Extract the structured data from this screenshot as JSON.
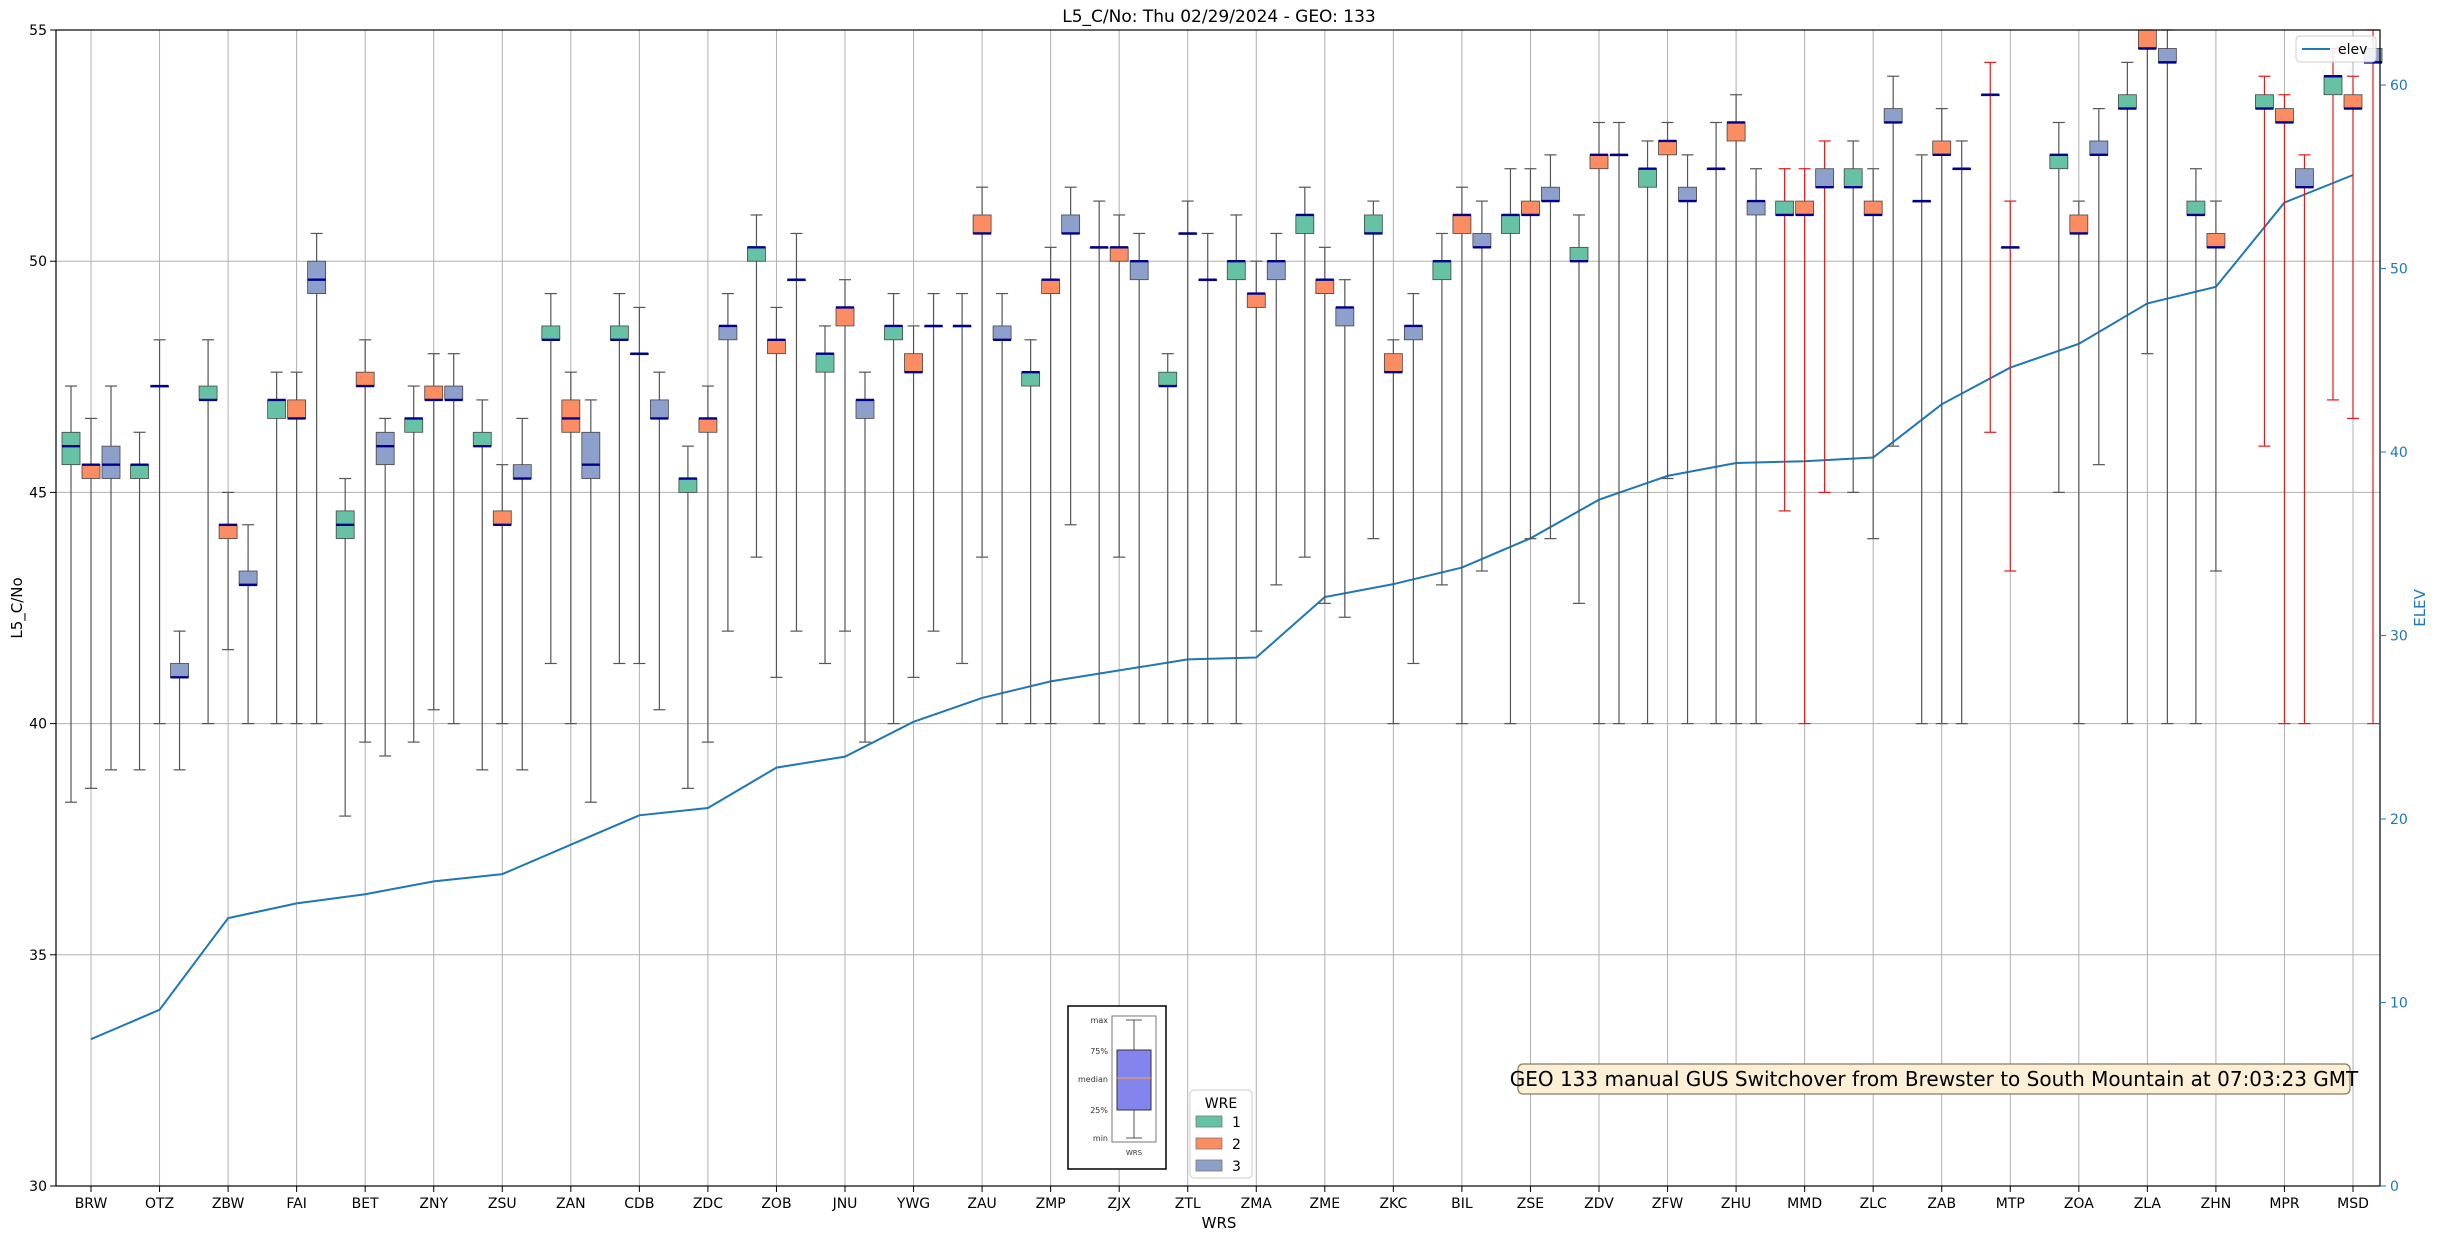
{
  "chart_data": {
    "type": "box",
    "title": "L5_C/No: Thu 02/29/2024 - GEO: 133",
    "xlabel": "WRS",
    "ylabel": "L5_C/No",
    "ylabel_right": "ELEV",
    "ylim": [
      30,
      55
    ],
    "ylim_right": [
      0,
      63
    ],
    "yticks": [
      "30",
      "35",
      "40",
      "45",
      "50",
      "55"
    ],
    "yticks_right": [
      "0",
      "10",
      "20",
      "30",
      "40",
      "50",
      "60"
    ],
    "grid": true,
    "categories": [
      "BRW",
      "OTZ",
      "ZBW",
      "FAI",
      "BET",
      "ZNY",
      "ZSU",
      "ZAN",
      "CDB",
      "ZDC",
      "ZOB",
      "JNU",
      "YWG",
      "ZAU",
      "ZMP",
      "ZJX",
      "ZTL",
      "ZMA",
      "ZME",
      "ZKC",
      "BIL",
      "ZSE",
      "ZDV",
      "ZFW",
      "ZHU",
      "MMD",
      "ZLC",
      "ZAB",
      "MTP",
      "ZOA",
      "ZLA",
      "ZHN",
      "MPR",
      "MSD"
    ],
    "colors": {
      "1": "#66c2a5",
      "2": "#fc8d62",
      "3": "#8da0cb",
      "elev": "#1f77b4",
      "median": "#00008b",
      "whisker": "#555555",
      "whisker_alt": "#e31a1c"
    },
    "boxes": [
      {
        "cat": "BRW",
        "wre": 1,
        "min": 38.3,
        "q1": 45.6,
        "median": 46.0,
        "q3": 46.3,
        "max": 47.3
      },
      {
        "cat": "BRW",
        "wre": 2,
        "min": 38.6,
        "q1": 45.3,
        "median": 45.6,
        "q3": 45.6,
        "max": 46.6
      },
      {
        "cat": "BRW",
        "wre": 3,
        "min": 39.0,
        "q1": 45.3,
        "median": 45.6,
        "q3": 46.0,
        "max": 47.3
      },
      {
        "cat": "OTZ",
        "wre": 1,
        "min": 39.0,
        "q1": 45.3,
        "median": 45.6,
        "q3": 45.6,
        "max": 46.3
      },
      {
        "cat": "OTZ",
        "wre": 2,
        "min": 40.0,
        "q1": 47.3,
        "median": 47.3,
        "q3": 47.3,
        "max": 48.3
      },
      {
        "cat": "OTZ",
        "wre": 3,
        "min": 39.0,
        "q1": 41.0,
        "median": 41.0,
        "q3": 41.3,
        "max": 42.0
      },
      {
        "cat": "ZBW",
        "wre": 1,
        "min": 40.0,
        "q1": 47.0,
        "median": 47.0,
        "q3": 47.3,
        "max": 48.3
      },
      {
        "cat": "ZBW",
        "wre": 2,
        "min": 41.6,
        "q1": 44.0,
        "median": 44.3,
        "q3": 44.3,
        "max": 45.0
      },
      {
        "cat": "ZBW",
        "wre": 3,
        "min": 40.0,
        "q1": 43.0,
        "median": 43.0,
        "q3": 43.3,
        "max": 44.3
      },
      {
        "cat": "FAI",
        "wre": 1,
        "min": 40.0,
        "q1": 46.6,
        "median": 47.0,
        "q3": 47.0,
        "max": 47.6
      },
      {
        "cat": "FAI",
        "wre": 2,
        "min": 40.0,
        "q1": 46.6,
        "median": 46.6,
        "q3": 47.0,
        "max": 47.6
      },
      {
        "cat": "FAI",
        "wre": 3,
        "min": 40.0,
        "q1": 49.3,
        "median": 49.6,
        "q3": 50.0,
        "max": 50.6
      },
      {
        "cat": "BET",
        "wre": 1,
        "min": 38.0,
        "q1": 44.0,
        "median": 44.3,
        "q3": 44.6,
        "max": 45.3
      },
      {
        "cat": "BET",
        "wre": 2,
        "min": 39.6,
        "q1": 47.3,
        "median": 47.3,
        "q3": 47.6,
        "max": 48.3
      },
      {
        "cat": "BET",
        "wre": 3,
        "min": 39.3,
        "q1": 45.6,
        "median": 46.0,
        "q3": 46.3,
        "max": 46.6
      },
      {
        "cat": "ZNY",
        "wre": 1,
        "min": 39.6,
        "q1": 46.3,
        "median": 46.6,
        "q3": 46.6,
        "max": 47.3
      },
      {
        "cat": "ZNY",
        "wre": 2,
        "min": 40.3,
        "q1": 47.0,
        "median": 47.0,
        "q3": 47.3,
        "max": 48.0
      },
      {
        "cat": "ZNY",
        "wre": 3,
        "min": 40.0,
        "q1": 47.0,
        "median": 47.0,
        "q3": 47.3,
        "max": 48.0
      },
      {
        "cat": "ZSU",
        "wre": 1,
        "min": 39.0,
        "q1": 46.0,
        "median": 46.0,
        "q3": 46.3,
        "max": 47.0
      },
      {
        "cat": "ZSU",
        "wre": 2,
        "min": 40.0,
        "q1": 44.3,
        "median": 44.3,
        "q3": 44.6,
        "max": 45.6
      },
      {
        "cat": "ZSU",
        "wre": 3,
        "min": 39.0,
        "q1": 45.3,
        "median": 45.3,
        "q3": 45.6,
        "max": 46.6
      },
      {
        "cat": "ZAN",
        "wre": 1,
        "min": 41.3,
        "q1": 48.3,
        "median": 48.3,
        "q3": 48.6,
        "max": 49.3
      },
      {
        "cat": "ZAN",
        "wre": 2,
        "min": 40.0,
        "q1": 46.3,
        "median": 46.6,
        "q3": 47.0,
        "max": 47.6
      },
      {
        "cat": "ZAN",
        "wre": 3,
        "min": 38.3,
        "q1": 45.3,
        "median": 45.6,
        "q3": 46.3,
        "max": 47.0
      },
      {
        "cat": "CDB",
        "wre": 1,
        "min": 41.3,
        "q1": 48.3,
        "median": 48.3,
        "q3": 48.6,
        "max": 49.3
      },
      {
        "cat": "CDB",
        "wre": 2,
        "min": 41.3,
        "q1": 48.0,
        "median": 48.0,
        "q3": 48.0,
        "max": 49.0
      },
      {
        "cat": "CDB",
        "wre": 3,
        "min": 40.3,
        "q1": 46.6,
        "median": 46.6,
        "q3": 47.0,
        "max": 47.6
      },
      {
        "cat": "ZDC",
        "wre": 1,
        "min": 38.6,
        "q1": 45.0,
        "median": 45.3,
        "q3": 45.3,
        "max": 46.0
      },
      {
        "cat": "ZDC",
        "wre": 2,
        "min": 39.6,
        "q1": 46.3,
        "median": 46.6,
        "q3": 46.6,
        "max": 47.3
      },
      {
        "cat": "ZDC",
        "wre": 3,
        "min": 42.0,
        "q1": 48.3,
        "median": 48.6,
        "q3": 48.6,
        "max": 49.3
      },
      {
        "cat": "ZOB",
        "wre": 1,
        "min": 43.6,
        "q1": 50.0,
        "median": 50.3,
        "q3": 50.3,
        "max": 51.0
      },
      {
        "cat": "ZOB",
        "wre": 2,
        "min": 41.0,
        "q1": 48.0,
        "median": 48.3,
        "q3": 48.3,
        "max": 49.0
      },
      {
        "cat": "ZOB",
        "wre": 3,
        "min": 42.0,
        "q1": 49.6,
        "median": 49.6,
        "q3": 49.6,
        "max": 50.6
      },
      {
        "cat": "JNU",
        "wre": 1,
        "min": 41.3,
        "q1": 47.6,
        "median": 48.0,
        "q3": 48.0,
        "max": 48.6
      },
      {
        "cat": "JNU",
        "wre": 2,
        "min": 42.0,
        "q1": 48.6,
        "median": 49.0,
        "q3": 49.0,
        "max": 49.6
      },
      {
        "cat": "JNU",
        "wre": 3,
        "min": 39.6,
        "q1": 46.6,
        "median": 47.0,
        "q3": 47.0,
        "max": 47.6
      },
      {
        "cat": "YWG",
        "wre": 1,
        "min": 40.0,
        "q1": 48.3,
        "median": 48.6,
        "q3": 48.6,
        "max": 49.3
      },
      {
        "cat": "YWG",
        "wre": 2,
        "min": 41.0,
        "q1": 47.6,
        "median": 47.6,
        "q3": 48.0,
        "max": 48.6
      },
      {
        "cat": "YWG",
        "wre": 3,
        "min": 42.0,
        "q1": 48.6,
        "median": 48.6,
        "q3": 48.6,
        "max": 49.3
      },
      {
        "cat": "ZAU",
        "wre": 1,
        "min": 41.3,
        "q1": 48.6,
        "median": 48.6,
        "q3": 48.6,
        "max": 49.3
      },
      {
        "cat": "ZAU",
        "wre": 2,
        "min": 43.6,
        "q1": 50.6,
        "median": 50.6,
        "q3": 51.0,
        "max": 51.6
      },
      {
        "cat": "ZAU",
        "wre": 3,
        "min": 40.0,
        "q1": 48.3,
        "median": 48.3,
        "q3": 48.6,
        "max": 49.3
      },
      {
        "cat": "ZMP",
        "wre": 1,
        "min": 40.0,
        "q1": 47.3,
        "median": 47.6,
        "q3": 47.6,
        "max": 48.3
      },
      {
        "cat": "ZMP",
        "wre": 2,
        "min": 40.0,
        "q1": 49.3,
        "median": 49.6,
        "q3": 49.6,
        "max": 50.3
      },
      {
        "cat": "ZMP",
        "wre": 3,
        "min": 44.3,
        "q1": 50.6,
        "median": 50.6,
        "q3": 51.0,
        "max": 51.6
      },
      {
        "cat": "ZJX",
        "wre": 1,
        "min": 40.0,
        "q1": 50.3,
        "median": 50.3,
        "q3": 50.3,
        "max": 51.3
      },
      {
        "cat": "ZJX",
        "wre": 2,
        "min": 43.6,
        "q1": 50.0,
        "median": 50.3,
        "q3": 50.3,
        "max": 51.0
      },
      {
        "cat": "ZJX",
        "wre": 3,
        "min": 40.0,
        "q1": 49.6,
        "median": 50.0,
        "q3": 50.0,
        "max": 50.6
      },
      {
        "cat": "ZTL",
        "wre": 1,
        "min": 40.0,
        "q1": 47.3,
        "median": 47.3,
        "q3": 47.6,
        "max": 48.0
      },
      {
        "cat": "ZTL",
        "wre": 2,
        "min": 40.0,
        "q1": 50.6,
        "median": 50.6,
        "q3": 50.6,
        "max": 51.3
      },
      {
        "cat": "ZTL",
        "wre": 3,
        "min": 40.0,
        "q1": 49.6,
        "median": 49.6,
        "q3": 49.6,
        "max": 50.6
      },
      {
        "cat": "ZMA",
        "wre": 1,
        "min": 40.0,
        "q1": 49.6,
        "median": 50.0,
        "q3": 50.0,
        "max": 51.0
      },
      {
        "cat": "ZMA",
        "wre": 2,
        "min": 42.0,
        "q1": 49.0,
        "median": 49.3,
        "q3": 49.3,
        "max": 50.0
      },
      {
        "cat": "ZMA",
        "wre": 3,
        "min": 43.0,
        "q1": 49.6,
        "median": 50.0,
        "q3": 50.0,
        "max": 50.6
      },
      {
        "cat": "ZME",
        "wre": 1,
        "min": 43.6,
        "q1": 50.6,
        "median": 51.0,
        "q3": 51.0,
        "max": 51.6
      },
      {
        "cat": "ZME",
        "wre": 2,
        "min": 42.6,
        "q1": 49.3,
        "median": 49.6,
        "q3": 49.6,
        "max": 50.3
      },
      {
        "cat": "ZME",
        "wre": 3,
        "min": 42.3,
        "q1": 48.6,
        "median": 49.0,
        "q3": 49.0,
        "max": 49.6
      },
      {
        "cat": "ZKC",
        "wre": 1,
        "min": 44.0,
        "q1": 50.6,
        "median": 50.6,
        "q3": 51.0,
        "max": 51.3
      },
      {
        "cat": "ZKC",
        "wre": 2,
        "min": 40.0,
        "q1": 47.6,
        "median": 47.6,
        "q3": 48.0,
        "max": 48.3
      },
      {
        "cat": "ZKC",
        "wre": 3,
        "min": 41.3,
        "q1": 48.3,
        "median": 48.6,
        "q3": 48.6,
        "max": 49.3
      },
      {
        "cat": "BIL",
        "wre": 1,
        "min": 43.0,
        "q1": 49.6,
        "median": 50.0,
        "q3": 50.0,
        "max": 50.6
      },
      {
        "cat": "BIL",
        "wre": 2,
        "min": 40.0,
        "q1": 50.6,
        "median": 51.0,
        "q3": 51.0,
        "max": 51.6
      },
      {
        "cat": "BIL",
        "wre": 3,
        "min": 43.3,
        "q1": 50.3,
        "median": 50.3,
        "q3": 50.6,
        "max": 51.3
      },
      {
        "cat": "ZSE",
        "wre": 1,
        "min": 40.0,
        "q1": 50.6,
        "median": 51.0,
        "q3": 51.0,
        "max": 52.0
      },
      {
        "cat": "ZSE",
        "wre": 2,
        "min": 44.0,
        "q1": 51.0,
        "median": 51.0,
        "q3": 51.3,
        "max": 52.0
      },
      {
        "cat": "ZSE",
        "wre": 3,
        "min": 44.0,
        "q1": 51.3,
        "median": 51.3,
        "q3": 51.6,
        "max": 52.3
      },
      {
        "cat": "ZDV",
        "wre": 1,
        "min": 42.6,
        "q1": 50.0,
        "median": 50.0,
        "q3": 50.3,
        "max": 51.0
      },
      {
        "cat": "ZDV",
        "wre": 2,
        "min": 40.0,
        "q1": 52.0,
        "median": 52.3,
        "q3": 52.3,
        "max": 53.0
      },
      {
        "cat": "ZDV",
        "wre": 3,
        "min": 40.0,
        "q1": 52.3,
        "median": 52.3,
        "q3": 52.3,
        "max": 53.0
      },
      {
        "cat": "ZFW",
        "wre": 1,
        "min": 40.0,
        "q1": 51.6,
        "median": 52.0,
        "q3": 52.0,
        "max": 52.6
      },
      {
        "cat": "ZFW",
        "wre": 2,
        "min": 45.3,
        "q1": 52.3,
        "median": 52.6,
        "q3": 52.6,
        "max": 53.0
      },
      {
        "cat": "ZFW",
        "wre": 3,
        "min": 40.0,
        "q1": 51.3,
        "median": 51.3,
        "q3": 51.6,
        "max": 52.3
      },
      {
        "cat": "ZHU",
        "wre": 1,
        "min": 40.0,
        "q1": 52.0,
        "median": 52.0,
        "q3": 52.0,
        "max": 53.0
      },
      {
        "cat": "ZHU",
        "wre": 2,
        "min": 40.0,
        "q1": 52.6,
        "median": 53.0,
        "q3": 53.0,
        "max": 53.6
      },
      {
        "cat": "ZHU",
        "wre": 3,
        "min": 40.0,
        "q1": 51.0,
        "median": 51.3,
        "q3": 51.3,
        "max": 52.0
      },
      {
        "cat": "MMD",
        "wre": 1,
        "min": 44.6,
        "q1": 51.0,
        "median": 51.0,
        "q3": 51.3,
        "max": 52.0
      },
      {
        "cat": "MMD",
        "wre": 2,
        "min": 40.0,
        "q1": 51.0,
        "median": 51.0,
        "q3": 51.3,
        "max": 52.0
      },
      {
        "cat": "MMD",
        "wre": 3,
        "min": 45.0,
        "q1": 51.6,
        "median": 51.6,
        "q3": 52.0,
        "max": 52.6
      },
      {
        "cat": "ZLC",
        "wre": 1,
        "min": 45.0,
        "q1": 51.6,
        "median": 51.6,
        "q3": 52.0,
        "max": 52.6
      },
      {
        "cat": "ZLC",
        "wre": 2,
        "min": 44.0,
        "q1": 51.0,
        "median": 51.0,
        "q3": 51.3,
        "max": 52.0
      },
      {
        "cat": "ZLC",
        "wre": 3,
        "min": 46.0,
        "q1": 53.0,
        "median": 53.0,
        "q3": 53.3,
        "max": 54.0
      },
      {
        "cat": "ZAB",
        "wre": 1,
        "min": 40.0,
        "q1": 51.3,
        "median": 51.3,
        "q3": 51.3,
        "max": 52.3
      },
      {
        "cat": "ZAB",
        "wre": 2,
        "min": 40.0,
        "q1": 52.3,
        "median": 52.3,
        "q3": 52.6,
        "max": 53.3
      },
      {
        "cat": "ZAB",
        "wre": 3,
        "min": 40.0,
        "q1": 52.0,
        "median": 52.0,
        "q3": 52.0,
        "max": 52.6
      },
      {
        "cat": "MTP",
        "wre": 1,
        "min": 46.3,
        "q1": 53.6,
        "median": 53.6,
        "q3": 53.6,
        "max": 54.3
      },
      {
        "cat": "MTP",
        "wre": 2,
        "min": 43.3,
        "q1": 50.3,
        "median": 50.3,
        "q3": 50.3,
        "max": 51.3
      },
      {
        "cat": "ZOA",
        "wre": 1,
        "min": 45.0,
        "q1": 52.0,
        "median": 52.3,
        "q3": 52.3,
        "max": 53.0
      },
      {
        "cat": "ZOA",
        "wre": 2,
        "min": 40.0,
        "q1": 50.6,
        "median": 50.6,
        "q3": 51.0,
        "max": 51.3
      },
      {
        "cat": "ZOA",
        "wre": 3,
        "min": 45.6,
        "q1": 52.3,
        "median": 52.3,
        "q3": 52.6,
        "max": 53.3
      },
      {
        "cat": "ZLA",
        "wre": 1,
        "min": 40.0,
        "q1": 53.3,
        "median": 53.3,
        "q3": 53.6,
        "max": 54.3
      },
      {
        "cat": "ZLA",
        "wre": 2,
        "min": 48.0,
        "q1": 54.6,
        "median": 54.6,
        "q3": 55.0,
        "max": 55.0
      },
      {
        "cat": "ZLA",
        "wre": 3,
        "min": 40.0,
        "q1": 54.3,
        "median": 54.3,
        "q3": 54.6,
        "max": 55.0
      },
      {
        "cat": "ZHN",
        "wre": 1,
        "min": 40.0,
        "q1": 51.0,
        "median": 51.0,
        "q3": 51.3,
        "max": 52.0
      },
      {
        "cat": "ZHN",
        "wre": 2,
        "min": 43.3,
        "q1": 50.3,
        "median": 50.3,
        "q3": 50.6,
        "max": 51.3
      },
      {
        "cat": "MPR",
        "wre": 1,
        "min": 46.0,
        "q1": 53.3,
        "median": 53.3,
        "q3": 53.6,
        "max": 54.0
      },
      {
        "cat": "MPR",
        "wre": 2,
        "min": 40.0,
        "q1": 53.0,
        "median": 53.0,
        "q3": 53.3,
        "max": 53.6
      },
      {
        "cat": "MPR",
        "wre": 3,
        "min": 40.0,
        "q1": 51.6,
        "median": 51.6,
        "q3": 52.0,
        "max": 52.3
      },
      {
        "cat": "MSD",
        "wre": 1,
        "min": 47.0,
        "q1": 53.6,
        "median": 54.0,
        "q3": 54.0,
        "max": 54.6
      },
      {
        "cat": "MSD",
        "wre": 2,
        "min": 46.6,
        "q1": 53.3,
        "median": 53.3,
        "q3": 53.6,
        "max": 54.0
      },
      {
        "cat": "MSD",
        "wre": 3,
        "min": 40.0,
        "q1": 54.3,
        "median": 54.3,
        "q3": 54.6,
        "max": 55.0
      }
    ],
    "red_whiskers": [
      "MMD",
      "MTP",
      "MPR",
      "MSD"
    ],
    "elev_series": {
      "name": "elev",
      "values": [
        8.0,
        9.6,
        14.6,
        15.4,
        15.9,
        16.6,
        17.0,
        18.6,
        20.2,
        20.6,
        22.8,
        23.4,
        25.3,
        26.6,
        27.5,
        28.1,
        28.7,
        28.8,
        32.1,
        32.8,
        33.7,
        35.3,
        37.4,
        38.7,
        39.4,
        39.5,
        39.7,
        42.6,
        44.6,
        45.9,
        48.1,
        49.0,
        53.6,
        55.1
      ]
    },
    "legend_wre": {
      "title": "WRE",
      "items": [
        "1",
        "2",
        "3"
      ]
    },
    "legend_elev": "elev",
    "key_labels": [
      "max",
      "75%",
      "median",
      "25%",
      "min"
    ],
    "key_xlabel": "WRS",
    "annotation": "GEO 133 manual GUS Switchover from Brewster to South Mountain at 07:03:23 GMT"
  }
}
